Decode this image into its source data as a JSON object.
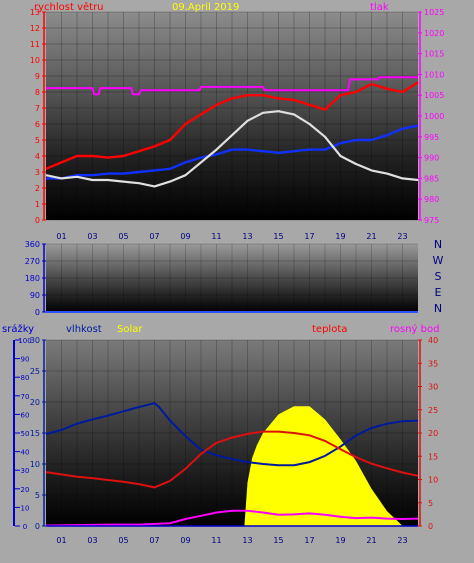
{
  "colors": {
    "wind": "#ff0000",
    "gust": "#1030ff",
    "pressure": "#ff00ff",
    "direction": "#e0e0e0",
    "humidity": "#001a9e",
    "solar": "#ffff00",
    "temperature": "#dd1010",
    "dewpoint": "#ff00ff",
    "rain": "#0000cc",
    "axis_left": "#ff0000",
    "axis_right": "#ff00ff",
    "axis_wind_dir": "#0000cc",
    "compass": "#000080"
  },
  "chart_data": [
    {
      "type": "line",
      "title": "09.April 2019",
      "ylabel": "rychlost větru",
      "ylabel_right": "tlak",
      "x_ticks": [
        "01",
        "03",
        "05",
        "07",
        "09",
        "11",
        "13",
        "15",
        "17",
        "19",
        "21",
        "23"
      ],
      "y_ticks": [
        "0",
        "1",
        "2",
        "3",
        "4",
        "5",
        "6",
        "7",
        "8",
        "9",
        "10",
        "11",
        "12",
        "13"
      ],
      "y2_ticks": [
        "975",
        "980",
        "985",
        "990",
        "995",
        "1000",
        "1005",
        "1010",
        "1015",
        "1020",
        "1025"
      ],
      "xlim": [
        0,
        24
      ],
      "ylim": [
        0,
        13
      ],
      "y2lim": [
        975,
        1025
      ],
      "series": [
        {
          "key": "gust",
          "x": [
            0,
            1,
            2,
            3,
            4,
            5,
            6,
            7,
            8,
            9,
            10,
            11,
            12,
            13,
            14,
            15,
            16,
            17,
            18,
            19,
            20,
            21,
            22,
            23,
            24
          ],
          "y": [
            3.2,
            3.6,
            4.0,
            4.0,
            3.9,
            4.0,
            4.3,
            4.6,
            5.0,
            6.0,
            6.6,
            7.2,
            7.6,
            7.8,
            7.8,
            7.6,
            7.5,
            7.2,
            6.9,
            7.8,
            8.0,
            8.5,
            8.2,
            8.0,
            8.6
          ]
        },
        {
          "key": "wind",
          "x": [
            0,
            1,
            2,
            3,
            4,
            5,
            6,
            7,
            8,
            9,
            10,
            11,
            12,
            13,
            14,
            15,
            16,
            17,
            18,
            19,
            20,
            21,
            22,
            23,
            24
          ],
          "y": [
            2.6,
            2.6,
            2.8,
            2.8,
            2.9,
            2.9,
            3.0,
            3.1,
            3.2,
            3.6,
            3.9,
            4.1,
            4.4,
            4.4,
            4.3,
            4.2,
            4.3,
            4.4,
            4.4,
            4.8,
            5.0,
            5.0,
            5.3,
            5.7,
            5.9
          ]
        },
        {
          "key": "direction",
          "x": [
            0,
            1,
            2,
            3,
            4,
            5,
            6,
            7,
            8,
            9,
            10,
            11,
            12,
            13,
            14,
            15,
            16,
            17,
            18,
            19,
            20,
            21,
            22,
            23,
            24
          ],
          "y": [
            2.8,
            2.6,
            2.7,
            2.5,
            2.5,
            2.4,
            2.3,
            2.1,
            2.4,
            2.8,
            3.6,
            4.4,
            5.3,
            6.2,
            6.7,
            6.8,
            6.6,
            6.0,
            5.2,
            4.0,
            3.5,
            3.1,
            2.9,
            2.6,
            2.5
          ]
        },
        {
          "key": "pressure",
          "axis": "right",
          "x": [
            0,
            3.0,
            3.1,
            3.4,
            3.5,
            5.5,
            5.6,
            6.0,
            6.1,
            9.9,
            10.0,
            14.0,
            14.1,
            19.5,
            19.6,
            21.4,
            21.5,
            24
          ],
          "y": [
            1006.7,
            1006.7,
            1005.2,
            1005.2,
            1006.7,
            1006.7,
            1005.2,
            1005.2,
            1006.2,
            1006.2,
            1007.0,
            1007.0,
            1006.2,
            1006.2,
            1008.8,
            1008.8,
            1009.3,
            1009.3
          ]
        }
      ]
    },
    {
      "type": "line",
      "y_ticks": [
        "0",
        "90",
        "180",
        "270",
        "360"
      ],
      "compass": [
        "N",
        "W",
        "S",
        "E",
        "N"
      ],
      "ylim": [
        0,
        360
      ],
      "series": []
    },
    {
      "type": "line",
      "labels": {
        "rain": "srážky",
        "humidity": "vlhkost",
        "solar": "Solar",
        "temperature": "teplota",
        "dewpoint": "rosný bod"
      },
      "x_ticks": [
        "01",
        "03",
        "05",
        "07",
        "09",
        "11",
        "13",
        "15",
        "17",
        "19",
        "21",
        "23"
      ],
      "y_ticks_rain": [
        "0",
        "10",
        "20",
        "30",
        "40",
        "50",
        "60",
        "70",
        "80",
        "90",
        "100"
      ],
      "y_ticks_humidity": [
        "0",
        "5",
        "10",
        "15",
        "20",
        "25",
        "30"
      ],
      "y_ticks_temperature": [
        "0",
        "5",
        "10",
        "15",
        "20",
        "25",
        "30",
        "35",
        "40"
      ],
      "ylim_rain": [
        0,
        100
      ],
      "ylim_humidity": [
        0,
        30
      ],
      "ylim_temperature": [
        0,
        40
      ],
      "series": [
        {
          "key": "solar",
          "type": "area",
          "x": [
            12.8,
            13.0,
            13.3,
            13.6,
            14.0,
            15.0,
            16.0,
            17.0,
            18.0,
            19.0,
            20.0,
            21.0,
            22.0,
            22.8,
            23.0
          ],
          "y": [
            0,
            7,
            11,
            13,
            15,
            18,
            19.3,
            19.3,
            17.2,
            14.0,
            10.5,
            6.0,
            2.4,
            0.5,
            0
          ]
        },
        {
          "key": "humidity",
          "x": [
            0,
            1,
            2,
            3,
            4,
            5,
            6,
            7,
            7.3,
            8,
            9,
            10,
            11,
            12,
            13,
            14,
            15,
            16,
            17,
            18,
            19,
            20,
            21,
            22,
            23,
            24
          ],
          "y": [
            14.8,
            15.5,
            16.5,
            17.2,
            17.8,
            18.5,
            19.2,
            19.8,
            19.2,
            17.0,
            14.5,
            12.3,
            11.4,
            10.8,
            10.3,
            10.0,
            9.8,
            9.8,
            10.3,
            11.3,
            12.8,
            14.6,
            15.8,
            16.5,
            16.9,
            17.0
          ]
        },
        {
          "key": "temperature",
          "x": [
            0,
            1,
            2,
            3,
            4,
            5,
            6,
            7,
            8,
            9,
            10,
            11,
            12,
            13,
            14,
            15,
            16,
            17,
            18,
            19,
            20,
            21,
            22,
            23,
            24
          ],
          "y": [
            11.6,
            11.1,
            10.6,
            10.3,
            9.9,
            9.5,
            9.0,
            8.3,
            9.7,
            12.3,
            15.5,
            17.9,
            19.0,
            19.8,
            20.3,
            20.3,
            20.0,
            19.5,
            18.3,
            16.5,
            14.8,
            13.4,
            12.4,
            11.5,
            10.8
          ]
        },
        {
          "key": "dewpoint",
          "x": [
            0,
            2,
            4,
            6,
            8,
            9,
            10,
            11,
            12,
            13,
            14,
            15,
            16,
            17,
            18,
            19,
            20,
            21,
            22,
            23,
            24
          ],
          "y": [
            0.1,
            0.2,
            0.3,
            0.3,
            0.6,
            1.5,
            2.2,
            2.9,
            3.3,
            3.3,
            2.9,
            2.4,
            2.5,
            2.7,
            2.4,
            2.0,
            1.7,
            1.8,
            1.6,
            1.5,
            1.6
          ]
        },
        {
          "key": "rain",
          "x": [
            0,
            24
          ],
          "y": [
            0,
            0
          ]
        }
      ]
    }
  ]
}
